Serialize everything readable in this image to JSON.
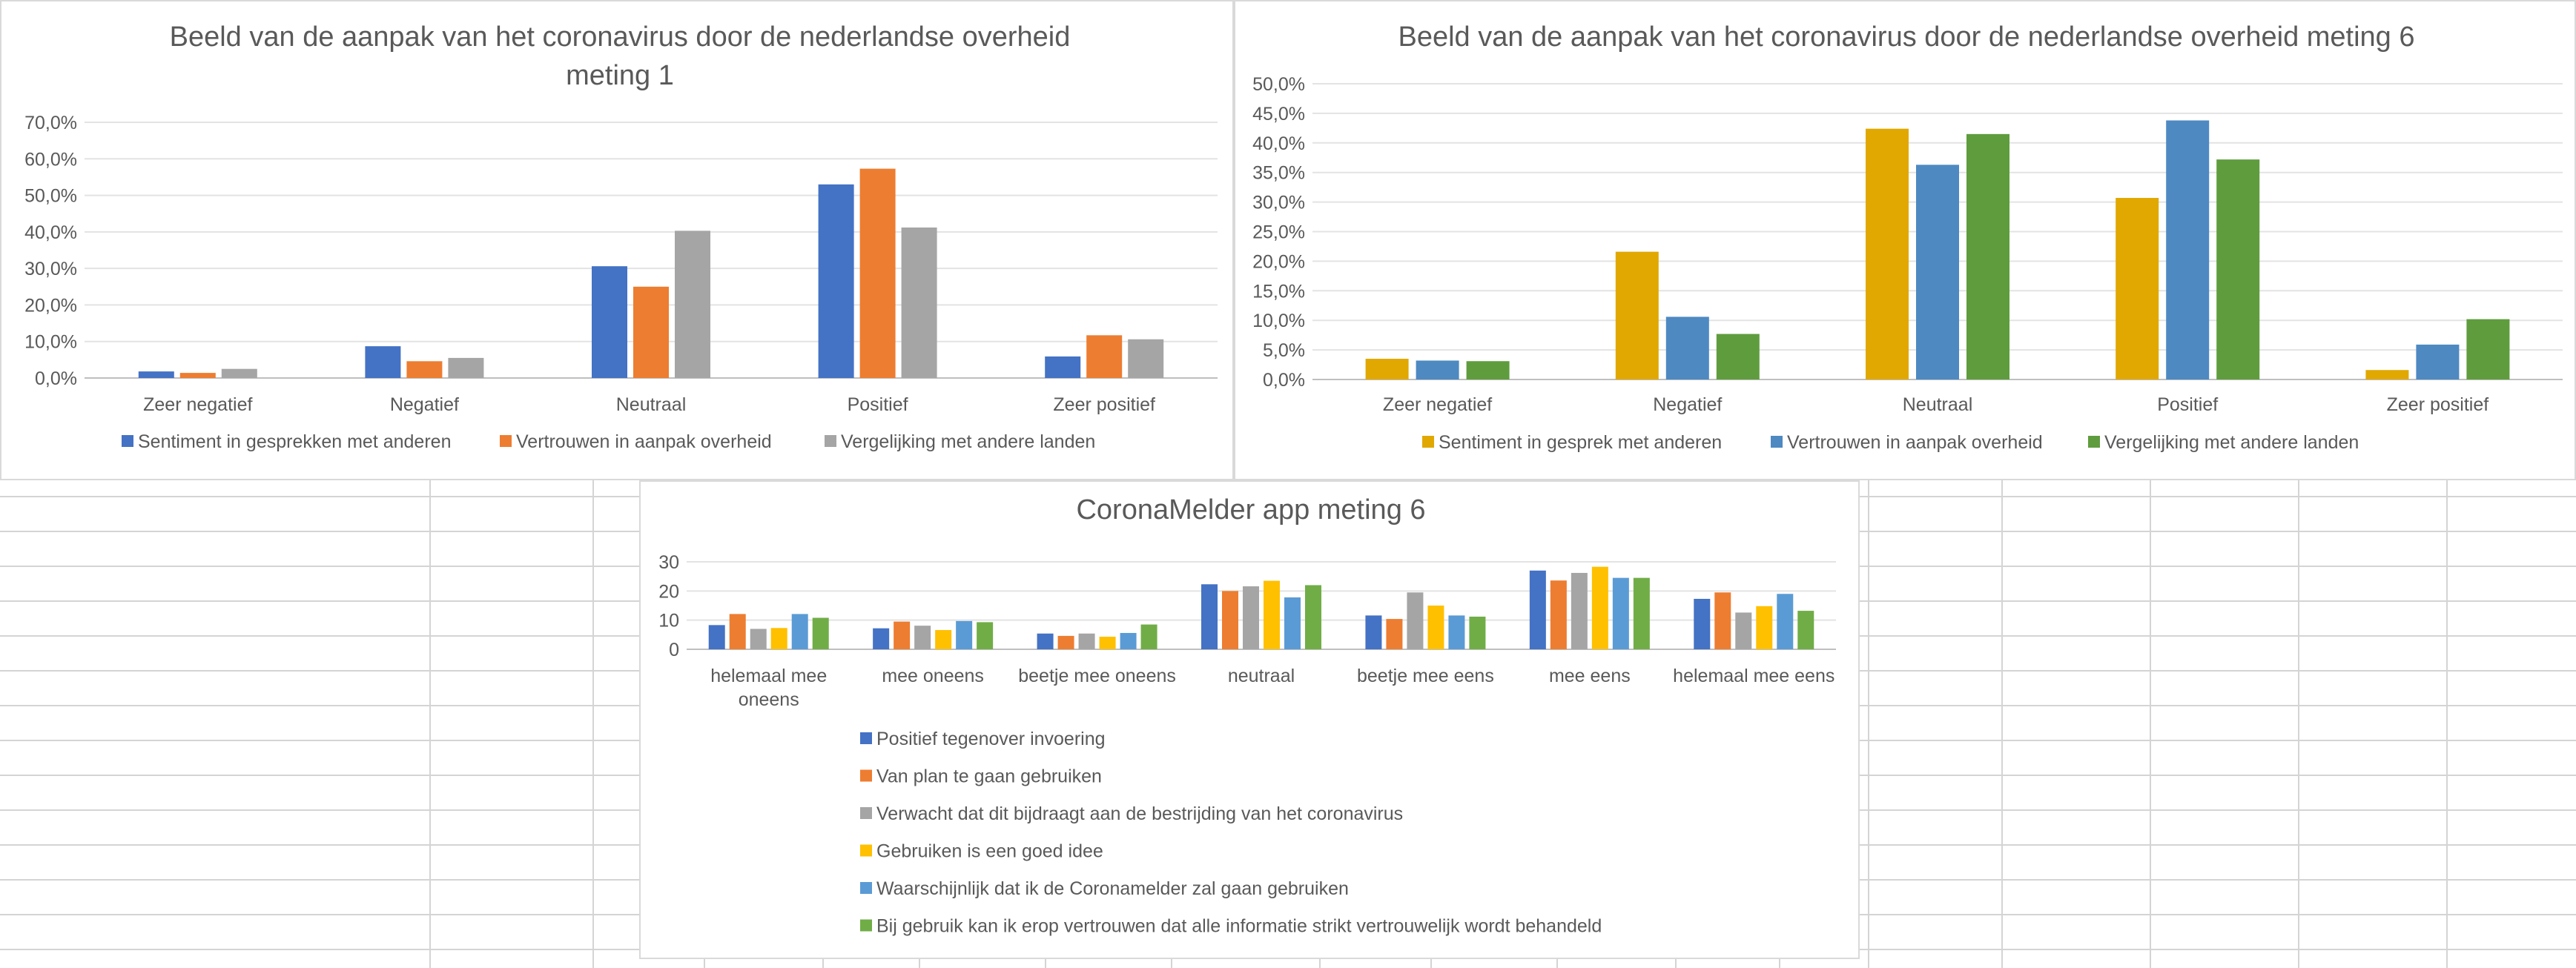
{
  "chart_data": [
    {
      "type": "bar",
      "title_lines": [
        "Beeld van de aanpak van het coronavirus door de nederlandse overheid",
        "meting 1"
      ],
      "categories": [
        "Zeer negatief",
        "Negatief",
        "Neutraal",
        "Positief",
        "Zeer positief"
      ],
      "series": [
        {
          "name": "Sentiment in gesprekken met anderen",
          "color": "#4472c4",
          "values": [
            1.8,
            8.7,
            30.6,
            53.0,
            5.9
          ]
        },
        {
          "name": "Vertrouwen in aanpak overheid",
          "color": "#ed7d31",
          "values": [
            1.4,
            4.6,
            25.0,
            57.3,
            11.7
          ]
        },
        {
          "name": "Vergelijking met andere landen",
          "color": "#a5a5a5",
          "values": [
            2.5,
            5.5,
            40.3,
            41.2,
            10.6
          ]
        }
      ],
      "ylim": [
        0,
        70
      ],
      "yticks": [
        "0,0%",
        "10,0%",
        "20,0%",
        "30,0%",
        "40,0%",
        "50,0%",
        "60,0%",
        "70,0%"
      ],
      "grid": true,
      "legend": "bottom"
    },
    {
      "type": "bar",
      "title_lines": [
        "Beeld van de aanpak van het coronavirus door de nederlandse overheid meting 6"
      ],
      "categories": [
        "Zeer negatief",
        "Negatief",
        "Neutraal",
        "Positief",
        "Zeer positief"
      ],
      "series": [
        {
          "name": "Sentiment in gesprek met anderen",
          "color": "#e0a800",
          "values": [
            3.5,
            21.6,
            42.4,
            30.7,
            1.6
          ]
        },
        {
          "name": "Vertrouwen in aanpak overheid",
          "color": "#4e89c2",
          "values": [
            3.2,
            10.6,
            36.3,
            43.8,
            5.9
          ]
        },
        {
          "name": "Vergelijking met andere landen",
          "color": "#5f9c3e",
          "values": [
            3.1,
            7.7,
            41.5,
            37.2,
            10.2
          ]
        }
      ],
      "ylim": [
        0,
        50
      ],
      "yticks": [
        "0,0%",
        "5,0%",
        "10,0%",
        "15,0%",
        "20,0%",
        "25,0%",
        "30,0%",
        "35,0%",
        "40,0%",
        "45,0%",
        "50,0%"
      ],
      "grid": true,
      "legend": "bottom"
    },
    {
      "type": "bar",
      "title_lines": [
        "CoronaMelder app meting 6"
      ],
      "categories": [
        [
          "helemaal mee",
          "oneens"
        ],
        [
          "mee oneens"
        ],
        [
          "beetje mee oneens"
        ],
        [
          "neutraal"
        ],
        [
          "beetje mee eens"
        ],
        [
          "mee eens"
        ],
        [
          "helemaal mee eens"
        ]
      ],
      "series": [
        {
          "name": "Positief tegenover invoering",
          "color": "#4472c4",
          "values": [
            8.3,
            7.2,
            5.4,
            22.3,
            11.6,
            27.0,
            17.3
          ]
        },
        {
          "name": "Van plan te gaan gebruiken",
          "color": "#ed7d31",
          "values": [
            12.1,
            9.5,
            4.6,
            20.0,
            10.4,
            23.6,
            19.5
          ]
        },
        {
          "name": "Verwacht dat dit bijdraagt aan de bestrijding van het coronavirus",
          "color": "#a5a5a5",
          "values": [
            7.0,
            8.1,
            5.4,
            21.6,
            19.5,
            26.2,
            12.6
          ]
        },
        {
          "name": "Gebruiken is een goed idee",
          "color": "#ffc000",
          "values": [
            7.3,
            6.6,
            4.3,
            23.5,
            15.0,
            28.3,
            14.8
          ]
        },
        {
          "name": "Waarschijnlijk dat ik de Coronamelder zal gaan gebruiken",
          "color": "#5b9bd5",
          "values": [
            12.1,
            9.7,
            5.6,
            17.8,
            11.6,
            24.5,
            19.0
          ]
        },
        {
          "name": "Bij gebruik kan ik erop vertrouwen dat alle informatie strikt vertrouwelijk wordt behandeld",
          "color": "#70ad47",
          "values": [
            10.8,
            9.3,
            8.5,
            22.0,
            11.2,
            24.5,
            13.2
          ]
        }
      ],
      "ylim": [
        0,
        30
      ],
      "yticks": [
        "0",
        "10",
        "20",
        "30"
      ],
      "grid": true,
      "legend": "bottom"
    }
  ]
}
